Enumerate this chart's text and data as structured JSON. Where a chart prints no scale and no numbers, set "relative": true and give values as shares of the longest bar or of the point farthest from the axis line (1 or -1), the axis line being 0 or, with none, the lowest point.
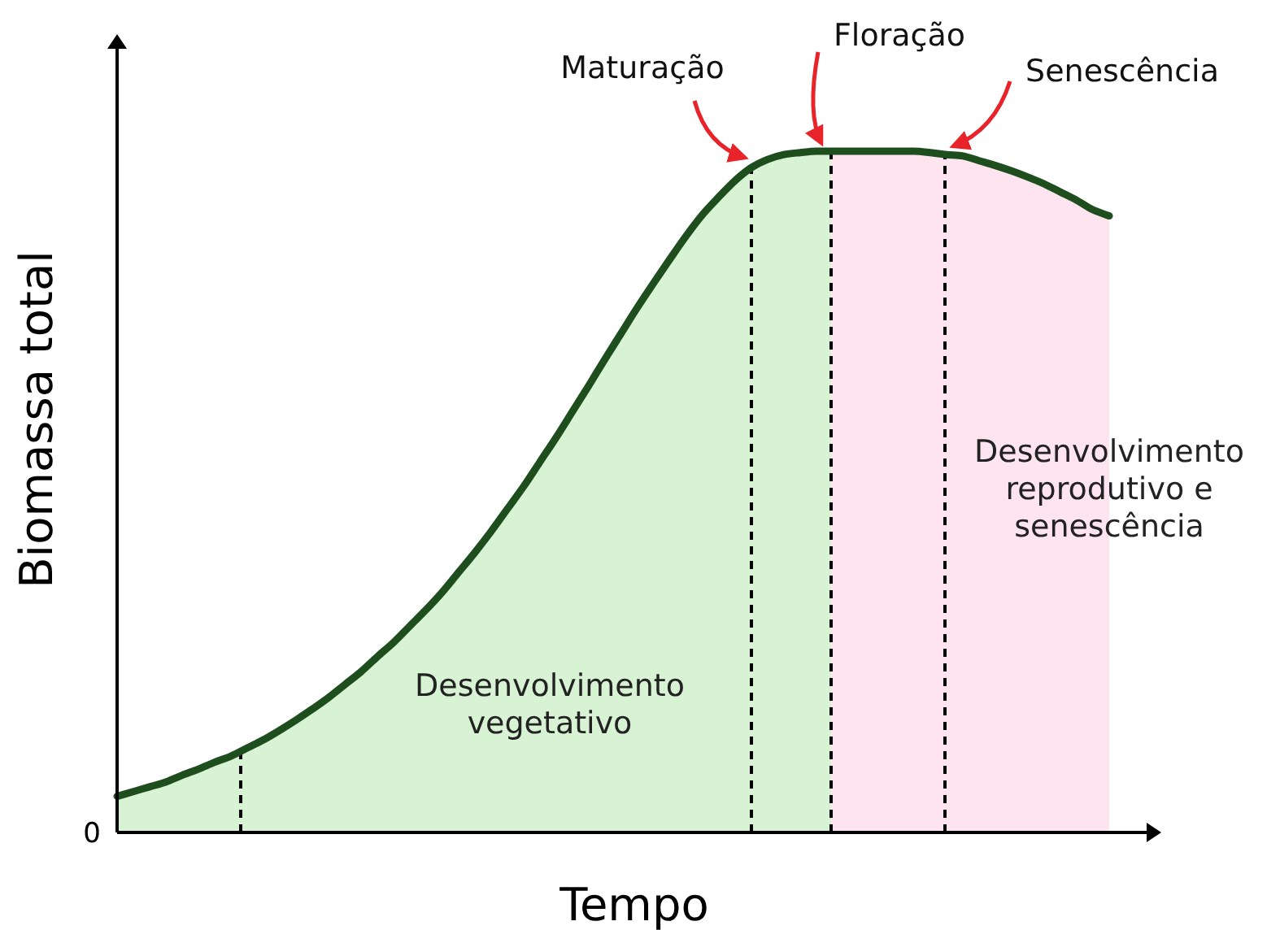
{
  "chart_data": {
    "type": "line",
    "relative": true,
    "xlabel": "Tempo",
    "ylabel": "Biomassa total",
    "categories": [
      null,
      null,
      null,
      null,
      null,
      null,
      null,
      null,
      null,
      null,
      null,
      null,
      null,
      null,
      null,
      null,
      null,
      null,
      null,
      null,
      null,
      null,
      null,
      null,
      null,
      null,
      null,
      null,
      null,
      null,
      null,
      null,
      null,
      null,
      null,
      null,
      null,
      null,
      null,
      null,
      null,
      null,
      null,
      null,
      null,
      null,
      null,
      null,
      null,
      null,
      null,
      null,
      null,
      null,
      null,
      null,
      null,
      null,
      null,
      null,
      null,
      null
    ],
    "series": [
      {
        "color": "#1e4d1e",
        "values": [
          0.053,
          0.06,
          0.067,
          0.074,
          0.084,
          0.093,
          0.103,
          0.112,
          0.124,
          0.136,
          0.15,
          0.165,
          0.181,
          0.198,
          0.217,
          0.236,
          0.258,
          0.279,
          0.303,
          0.327,
          0.353,
          0.382,
          0.411,
          0.442,
          0.475,
          0.508,
          0.544,
          0.58,
          0.618,
          0.656,
          0.695,
          0.733,
          0.771,
          0.807,
          0.842,
          0.876,
          0.907,
          0.933,
          0.957,
          0.976,
          0.988,
          0.995,
          0.998,
          1,
          1,
          1,
          1,
          1,
          1,
          1,
          0.998,
          0.995,
          0.993,
          0.986,
          0.979,
          0.971,
          0.962,
          0.952,
          0.94,
          0.928,
          0.914,
          0.905
        ]
      }
    ],
    "grid": "x",
    "annotations": [
      "Maturação",
      "Floração",
      "Senescência",
      "Desenvolvimento vegetativo",
      "Desenvolvimento reprodutivo e senescência",
      "0"
    ]
  }
}
